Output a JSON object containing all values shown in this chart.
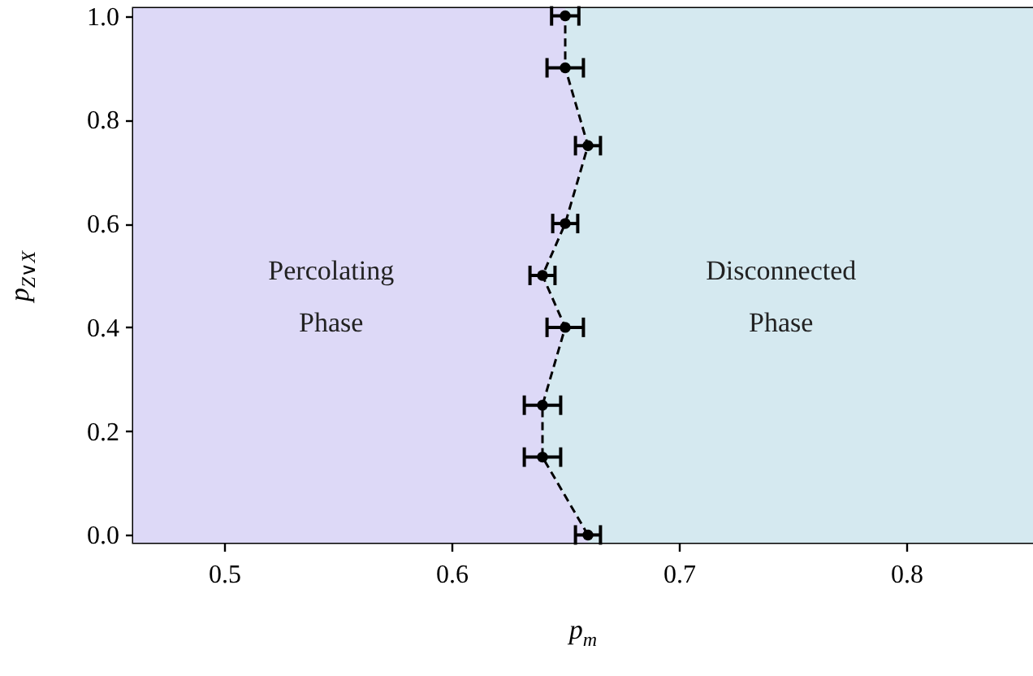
{
  "chart_data": {
    "type": "line",
    "orientation": "horizontal",
    "xlabel": "p$_{m}$",
    "ylabel": "p$_{Z∨X}$",
    "xlim": [
      0.46,
      0.86
    ],
    "ylim": [
      -0.015,
      1.015
    ],
    "xticks": [
      0.5,
      0.6,
      0.7,
      0.8
    ],
    "yticks": [
      {
        "value": 0,
        "label": "0.0"
      },
      0.2,
      0.4,
      0.6,
      0.8,
      {
        "value": 1,
        "label": "1.0"
      }
    ],
    "grid": false,
    "marker": "circle",
    "line_style": "dashed",
    "series": [
      {
        "color": "#000000",
        "x": [
          0,
          0.15,
          0.25,
          0.4,
          0.5,
          0.6,
          0.75,
          0.9,
          1.0
        ],
        "values": [
          0.66,
          0.64,
          0.64,
          0.65,
          0.64,
          0.65,
          0.66,
          0.65,
          0.65
        ],
        "errors": [
          0.0055,
          0.008,
          0.008,
          0.008,
          0.0055,
          0.0055,
          0.0055,
          0.008,
          0.006
        ]
      }
    ],
    "annotations": [
      "Percolating\nPhase",
      "Disconnected\nPhase"
    ]
  }
}
